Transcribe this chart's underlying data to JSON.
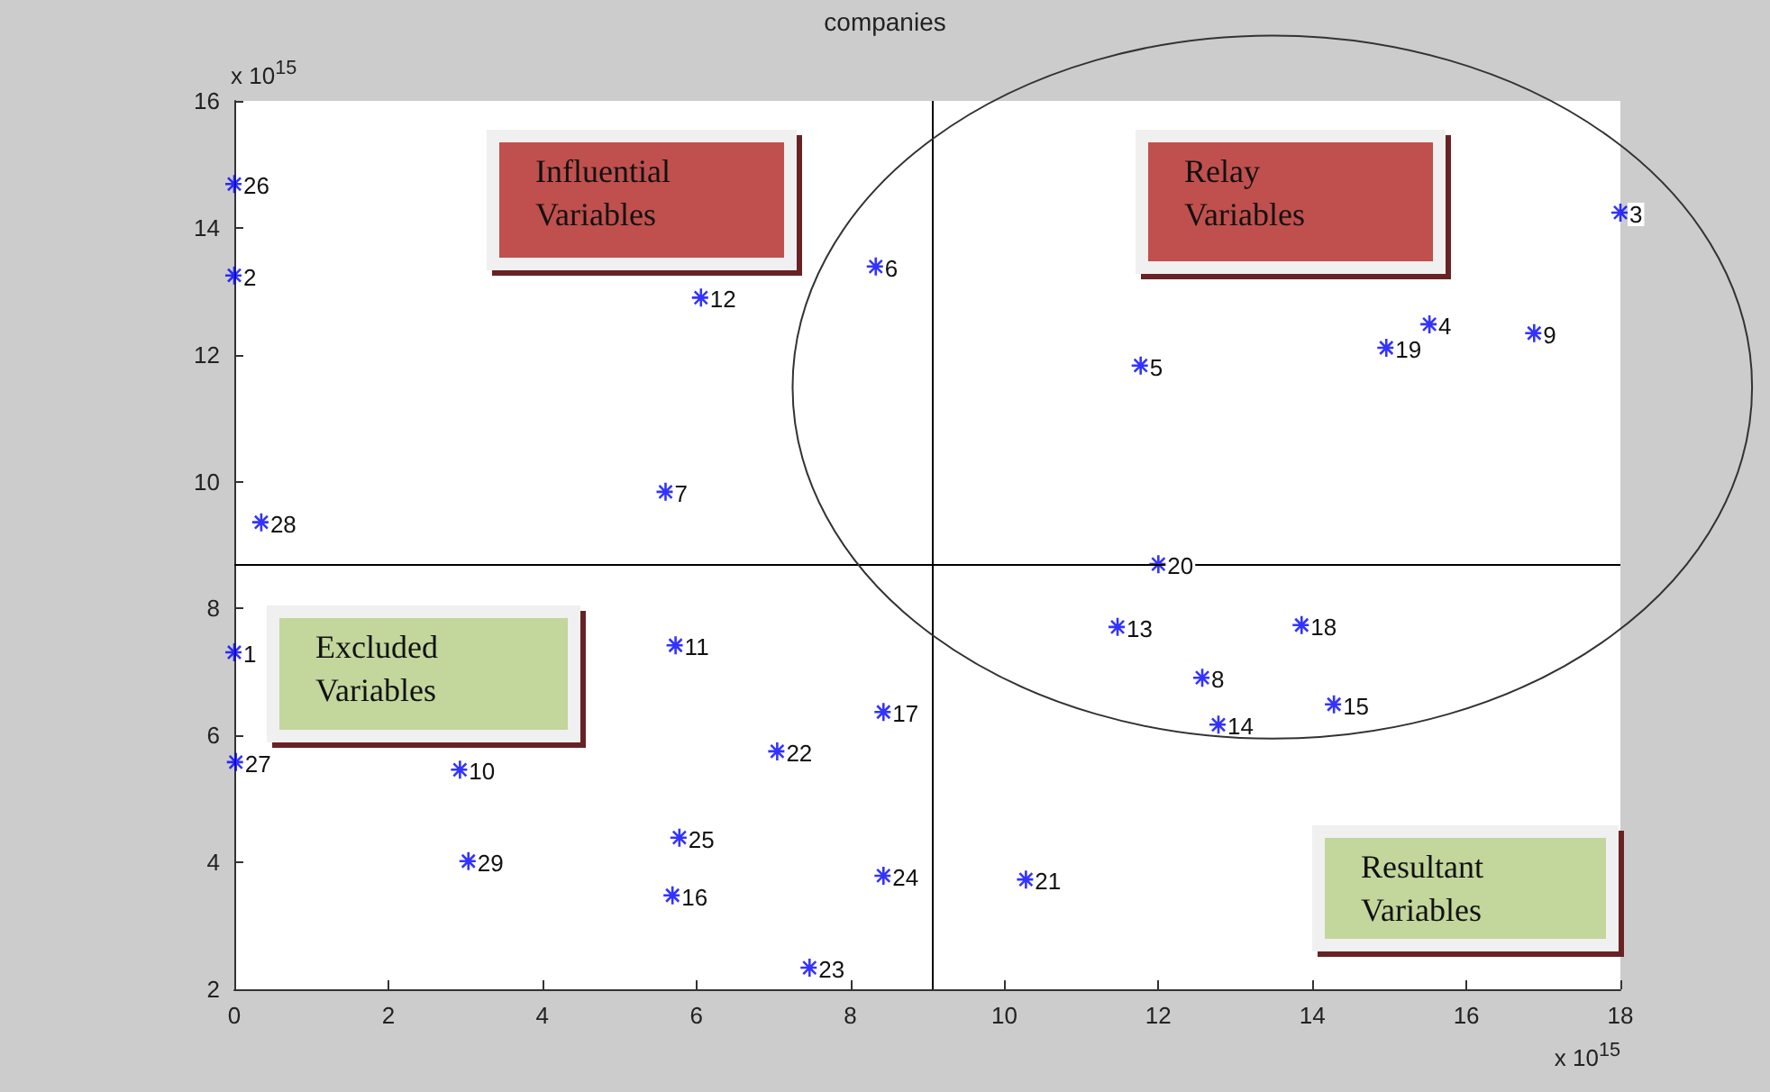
{
  "chart_data": {
    "type": "scatter",
    "title": "companies",
    "xlabel": "x 10$^{15}$",
    "ylabel": "x 10$^{15}$",
    "xlim": [
      0,
      18
    ],
    "xticks": [
      0,
      2,
      4,
      6,
      8,
      10,
      12,
      14,
      16,
      18
    ],
    "ylim": [
      2,
      16
    ],
    "yticks": [
      2,
      4,
      6,
      8,
      10,
      12,
      14,
      16
    ],
    "grid": false,
    "marker": "cross",
    "annotations": [
      "Influential Variables",
      "Relay Variables",
      "Excluded Variables",
      "Resultant Variables",
      {
        "text": "1",
        "x": 0,
        "y": 7.31
      },
      {
        "text": "2",
        "x": 0,
        "y": 13.25
      },
      {
        "text": "3",
        "x": 18.0,
        "y": 14.24
      },
      {
        "text": "4",
        "x": 15.52,
        "y": 12.48
      },
      {
        "text": "5",
        "x": 11.77,
        "y": 11.83
      },
      {
        "text": "6",
        "x": 8.33,
        "y": 13.39
      },
      {
        "text": "7",
        "x": 5.6,
        "y": 9.84
      },
      {
        "text": "8",
        "x": 12.57,
        "y": 6.91
      },
      {
        "text": "9",
        "x": 16.88,
        "y": 12.34
      },
      {
        "text": "10",
        "x": 2.93,
        "y": 5.46
      },
      {
        "text": "11",
        "x": 5.73,
        "y": 7.42
      },
      {
        "text": "12",
        "x": 6.06,
        "y": 12.9
      },
      {
        "text": "13",
        "x": 11.47,
        "y": 7.71
      },
      {
        "text": "14",
        "x": 12.78,
        "y": 6.17
      },
      {
        "text": "15",
        "x": 14.28,
        "y": 6.49
      },
      {
        "text": "16",
        "x": 5.69,
        "y": 3.48
      },
      {
        "text": "17",
        "x": 8.43,
        "y": 6.37
      },
      {
        "text": "18",
        "x": 13.86,
        "y": 7.74
      },
      {
        "text": "19",
        "x": 14.96,
        "y": 12.11
      },
      {
        "text": "20",
        "x": 12.0,
        "y": 8.7
      },
      {
        "text": "21",
        "x": 10.28,
        "y": 3.73
      },
      {
        "text": "22",
        "x": 7.05,
        "y": 5.75
      },
      {
        "text": "23",
        "x": 7.47,
        "y": 2.34
      },
      {
        "text": "24",
        "x": 8.43,
        "y": 3.79
      },
      {
        "text": "25",
        "x": 5.78,
        "y": 4.39
      },
      {
        "text": "26",
        "x": 0,
        "y": 14.69
      },
      {
        "text": "27",
        "x": 0.02,
        "y": 5.58
      },
      {
        "text": "28",
        "x": 0.35,
        "y": 9.36
      },
      {
        "text": "29",
        "x": 3.04,
        "y": 4.02
      }
    ],
    "ref_lines": [
      {
        "axis": "x",
        "value": 9.06,
        "label": null,
        "color": "#000000"
      },
      {
        "axis": "y",
        "value": 8.7,
        "label": null,
        "color": "#000000"
      }
    ],
    "series": [
      {
        "color": "#0000ff",
        "x": [
          0,
          0,
          18.0,
          15.52,
          11.77,
          8.33,
          5.6,
          12.57,
          16.88,
          2.93,
          5.73,
          6.06,
          11.47,
          12.78,
          14.28,
          5.69,
          8.43,
          13.86,
          14.96,
          12.0,
          10.28,
          7.05,
          7.47,
          8.43,
          5.78,
          0,
          0.02,
          0.35,
          3.04
        ],
        "values": [
          7.31,
          13.25,
          14.24,
          12.48,
          11.83,
          13.39,
          9.84,
          6.91,
          12.34,
          5.46,
          7.42,
          12.9,
          7.71,
          6.17,
          6.49,
          3.48,
          6.37,
          7.74,
          12.11,
          8.7,
          3.73,
          5.75,
          2.34,
          3.79,
          4.39,
          14.69,
          5.58,
          9.36,
          4.02
        ]
      }
    ]
  }
}
